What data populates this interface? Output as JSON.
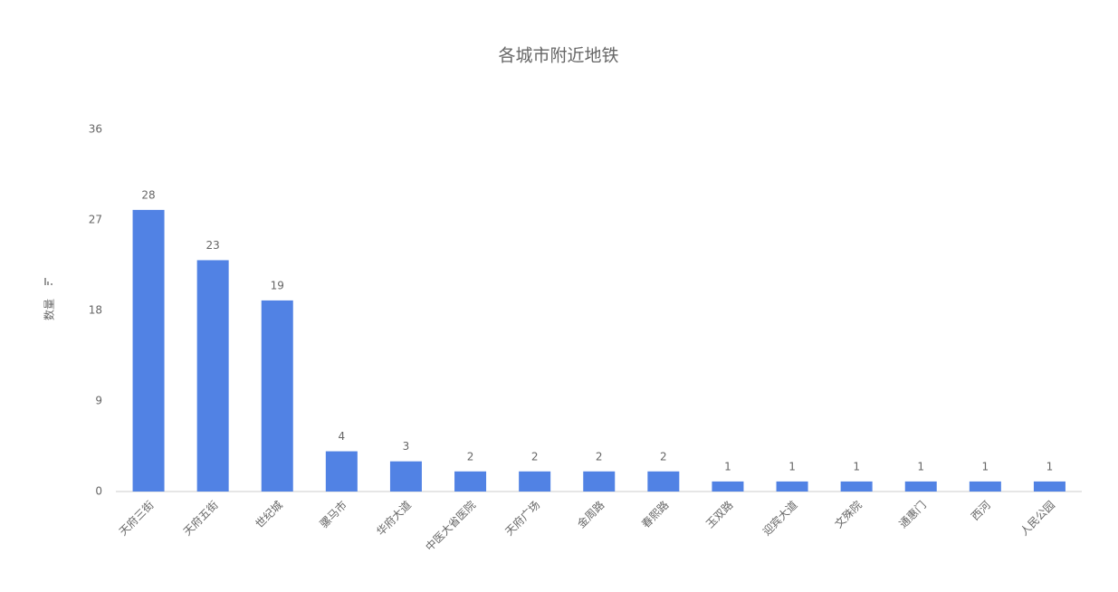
{
  "chart_data": {
    "type": "bar",
    "title": "各城市附近地铁",
    "y_label": "数量",
    "categories": [
      "天府三街",
      "天府五街",
      "世纪城",
      "骡马市",
      "华府大道",
      "中医大省医院",
      "天府广场",
      "金周路",
      "春熙路",
      "玉双路",
      "迎宾大道",
      "文殊院",
      "通惠门",
      "西河",
      "人民公园"
    ],
    "values": [
      28,
      23,
      19,
      4,
      3,
      2,
      2,
      2,
      2,
      1,
      1,
      1,
      1,
      1,
      1
    ],
    "color": "#5182e4",
    "ylim": [
      0,
      36
    ],
    "yticks": [
      0,
      9,
      18,
      27,
      36
    ],
    "grid": false
  }
}
